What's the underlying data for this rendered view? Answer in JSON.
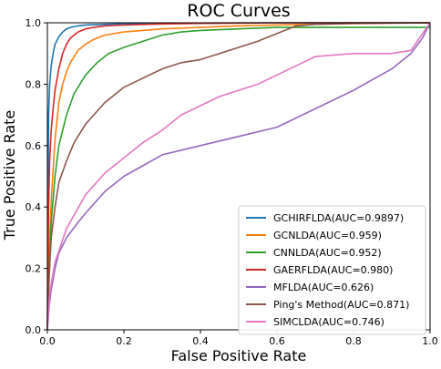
{
  "chart_data": {
    "type": "line",
    "title": "ROC Curves",
    "xlabel": "False Positive Rate",
    "ylabel": "True Positive Rate",
    "xlim": [
      0.0,
      1.0
    ],
    "ylim": [
      0.0,
      1.0
    ],
    "xticks": [
      "0.0",
      "0.2",
      "0.4",
      "0.6",
      "0.8",
      "1.0"
    ],
    "yticks": [
      "0.0",
      "0.2",
      "0.4",
      "0.6",
      "0.8",
      "1.0"
    ],
    "grid": false,
    "legend_position": "lower-right",
    "series": [
      {
        "name": "GCHIRFLDA(AUC=0.9897)",
        "color": "#1f77b4",
        "x": [
          0.0,
          0.003,
          0.006,
          0.01,
          0.015,
          0.02,
          0.03,
          0.04,
          0.05,
          0.06,
          0.08,
          0.1,
          0.15,
          0.2,
          0.3,
          0.4,
          0.6,
          0.8,
          1.0
        ],
        "y": [
          0.0,
          0.7,
          0.8,
          0.86,
          0.9,
          0.93,
          0.955,
          0.97,
          0.98,
          0.985,
          0.99,
          0.993,
          0.995,
          0.997,
          0.998,
          0.999,
          1.0,
          1.0,
          1.0
        ]
      },
      {
        "name": "GCNLDA(AUC=0.959)",
        "color": "#ff7f0e",
        "x": [
          0.0,
          0.005,
          0.01,
          0.02,
          0.03,
          0.04,
          0.05,
          0.06,
          0.08,
          0.1,
          0.12,
          0.15,
          0.2,
          0.3,
          0.4,
          0.5,
          0.6,
          0.8,
          1.0
        ],
        "y": [
          0.0,
          0.25,
          0.42,
          0.62,
          0.74,
          0.8,
          0.84,
          0.87,
          0.91,
          0.93,
          0.945,
          0.96,
          0.97,
          0.98,
          0.985,
          0.99,
          0.993,
          0.997,
          1.0
        ]
      },
      {
        "name": "CNNLDA(AUC=0.952)",
        "color": "#2ca02c",
        "x": [
          0.0,
          0.005,
          0.01,
          0.02,
          0.03,
          0.05,
          0.07,
          0.1,
          0.13,
          0.16,
          0.2,
          0.25,
          0.3,
          0.35,
          0.4,
          0.5,
          0.6,
          0.8,
          1.0
        ],
        "y": [
          0.0,
          0.2,
          0.35,
          0.5,
          0.6,
          0.7,
          0.77,
          0.83,
          0.87,
          0.9,
          0.92,
          0.94,
          0.96,
          0.97,
          0.975,
          0.98,
          0.985,
          0.985,
          0.985
        ]
      },
      {
        "name": "GAERFLDA(AUC=0.980)",
        "color": "#d62728",
        "x": [
          0.0,
          0.003,
          0.006,
          0.01,
          0.015,
          0.02,
          0.03,
          0.04,
          0.05,
          0.06,
          0.08,
          0.1,
          0.12,
          0.15,
          0.2,
          0.3,
          0.4,
          0.6,
          0.8,
          1.0
        ],
        "y": [
          0.0,
          0.4,
          0.55,
          0.65,
          0.72,
          0.78,
          0.85,
          0.9,
          0.93,
          0.95,
          0.97,
          0.98,
          0.985,
          0.99,
          0.993,
          0.996,
          0.998,
          1.0,
          1.0,
          1.0
        ]
      },
      {
        "name": "MFLDA(AUC=0.626)",
        "color": "#9467bd",
        "x": [
          0.0,
          0.005,
          0.01,
          0.02,
          0.03,
          0.05,
          0.08,
          0.1,
          0.15,
          0.2,
          0.3,
          0.4,
          0.5,
          0.6,
          0.7,
          0.8,
          0.9,
          0.95,
          0.98,
          1.0
        ],
        "y": [
          0.0,
          0.08,
          0.13,
          0.2,
          0.25,
          0.3,
          0.35,
          0.38,
          0.45,
          0.5,
          0.57,
          0.6,
          0.63,
          0.66,
          0.72,
          0.78,
          0.85,
          0.9,
          0.95,
          1.0
        ]
      },
      {
        "name": "Ping's Method(AUC=0.871)",
        "color": "#8c564b",
        "x": [
          0.0,
          0.005,
          0.01,
          0.02,
          0.03,
          0.05,
          0.07,
          0.1,
          0.15,
          0.2,
          0.25,
          0.3,
          0.35,
          0.4,
          0.45,
          0.5,
          0.55,
          0.6,
          0.65,
          0.7,
          0.8,
          1.0
        ],
        "y": [
          0.0,
          0.18,
          0.3,
          0.4,
          0.48,
          0.55,
          0.61,
          0.67,
          0.74,
          0.79,
          0.82,
          0.85,
          0.87,
          0.88,
          0.9,
          0.92,
          0.94,
          0.965,
          0.99,
          0.995,
          0.998,
          1.0
        ]
      },
      {
        "name": "SIMCLDA(AUC=0.746)",
        "color": "#e377c2",
        "x": [
          0.0,
          0.005,
          0.01,
          0.02,
          0.05,
          0.1,
          0.15,
          0.2,
          0.25,
          0.3,
          0.35,
          0.4,
          0.45,
          0.5,
          0.55,
          0.6,
          0.65,
          0.7,
          0.8,
          0.9,
          0.95,
          1.0
        ],
        "y": [
          0.0,
          0.1,
          0.15,
          0.22,
          0.33,
          0.44,
          0.51,
          0.56,
          0.61,
          0.65,
          0.7,
          0.73,
          0.76,
          0.78,
          0.8,
          0.83,
          0.86,
          0.89,
          0.9,
          0.9,
          0.91,
          1.0
        ]
      }
    ]
  }
}
